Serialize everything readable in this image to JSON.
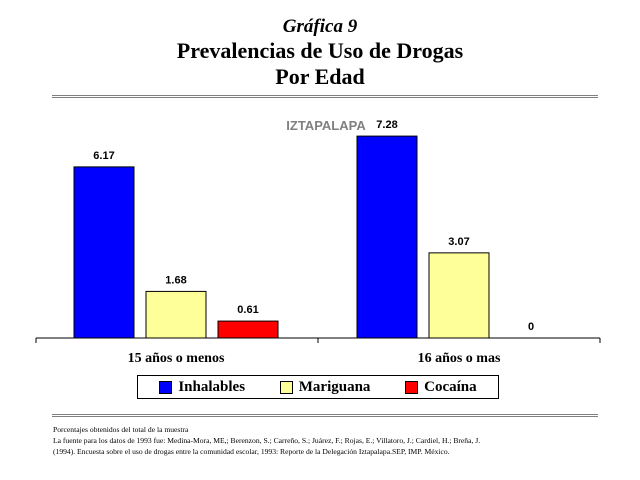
{
  "header": {
    "kicker": "Gráfica 9",
    "title_line1": "Prevalencias de Uso de Drogas",
    "title_line2": "Por Edad"
  },
  "chart_data": {
    "type": "bar",
    "title": "IZTAPALAPA",
    "categories": [
      "15 años o menos",
      "16 años o mas"
    ],
    "series": [
      {
        "name": "Inhalables",
        "values": [
          6.17,
          7.28
        ],
        "color": "#0000ff"
      },
      {
        "name": "Mariguana",
        "values": [
          1.68,
          3.07
        ],
        "color": "#ffff99"
      },
      {
        "name": "Cocaína",
        "values": [
          0.61,
          0
        ],
        "color": "#ff0000"
      }
    ],
    "data_labels": [
      [
        "6.17",
        "7.28"
      ],
      [
        "1.68",
        "3.07"
      ],
      [
        "0.61",
        "0"
      ]
    ],
    "ylim": [
      0,
      7.5
    ],
    "grid": false,
    "legend_position": "bottom"
  },
  "notes": {
    "line1": "Porcentajes obtenidos del total de la muestra",
    "line2": "La fuente para los datos de 1993 fue: Medina-Mora, ME,; Berenzon, S.; Carreño, S.; Juárez, F.; Rojas, E.; Villatoro, J.; Cardiel, H.; Breña, J.",
    "line3": "(1994). Encuesta sobre el uso de drogas entre la comunidad escolar, 1993: Reporte de la Delegación Iztapalapa.SEP, IMP. México."
  }
}
